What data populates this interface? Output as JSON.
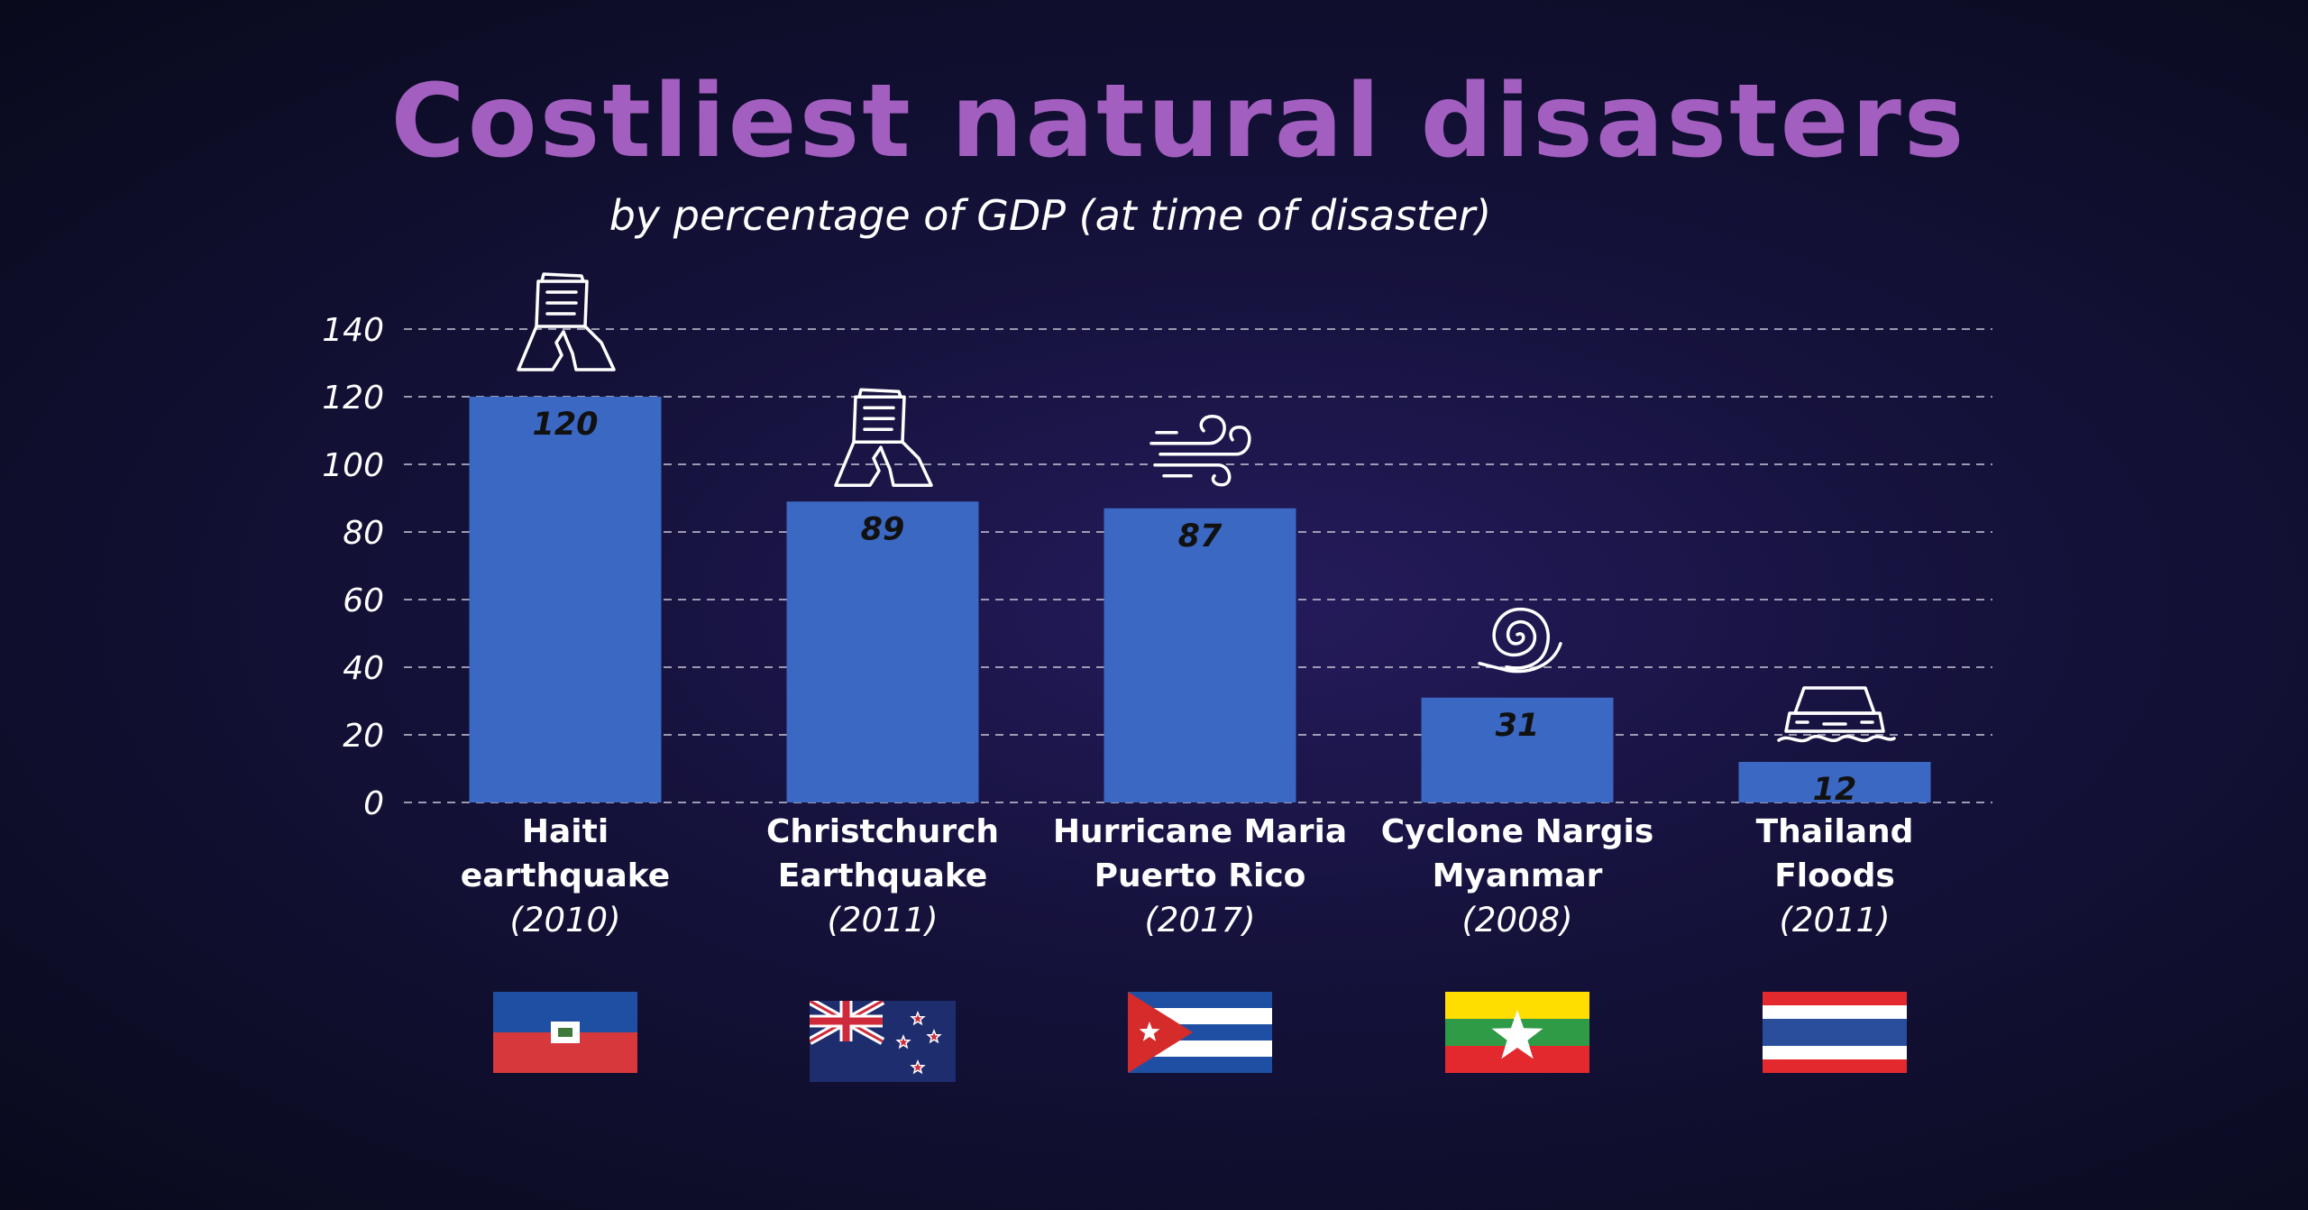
{
  "chart_data": {
    "type": "bar",
    "title": "Costliest natural disasters",
    "subtitle": "by percentage of GDP (at time of disaster)",
    "categories": [
      {
        "name_lines": [
          "Haiti",
          "earthquake"
        ],
        "year": "(2010)",
        "icon": "collapsed-building-icon",
        "flag": "haiti-flag"
      },
      {
        "name_lines": [
          "Christchurch",
          "Earthquake"
        ],
        "year": "(2011)",
        "icon": "collapsed-building-icon",
        "flag": "new-zealand-flag"
      },
      {
        "name_lines": [
          "Hurricane Maria",
          "Puerto Rico"
        ],
        "year": "(2017)",
        "icon": "wind-icon",
        "flag": "cuba-flag"
      },
      {
        "name_lines": [
          "Cyclone Nargis",
          "Myanmar"
        ],
        "year": "(2008)",
        "icon": "cyclone-icon",
        "flag": "myanmar-flag"
      },
      {
        "name_lines": [
          "Thailand",
          "Floods"
        ],
        "year": "(2011)",
        "icon": "flooded-car-icon",
        "flag": "thailand-flag"
      }
    ],
    "values": [
      120,
      89,
      87,
      31,
      12
    ],
    "value_labels": [
      "120",
      "89",
      "87",
      "31",
      "12"
    ],
    "yticks": [
      "0",
      "20",
      "40",
      "60",
      "80",
      "100",
      "120",
      "140"
    ],
    "ylim": [
      0,
      140
    ],
    "grid": true,
    "xlabel": "",
    "ylabel": ""
  },
  "colors": {
    "title": "#a35fc0",
    "bar": "#3b68c2",
    "background": "#120f35"
  }
}
